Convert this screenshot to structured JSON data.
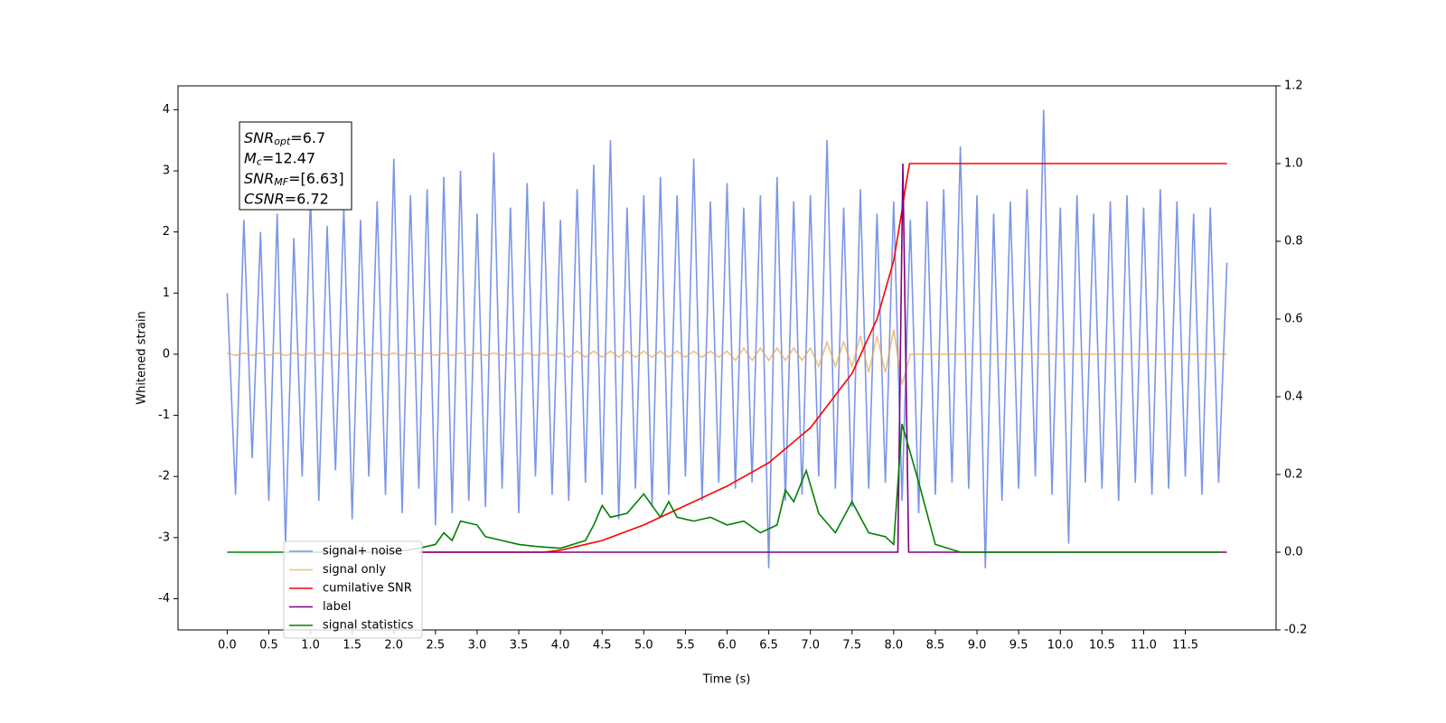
{
  "chart_data": {
    "type": "line",
    "xlabel": "Time (s)",
    "ylabel": "Whitened strain",
    "xlim": [
      -0.59,
      12.59
    ],
    "ylim": [
      -4.51,
      4.39
    ],
    "y2lim": [
      -0.2,
      1.2
    ],
    "xticks": [
      {
        "value": 0,
        "label": "0.0"
      },
      0.5,
      {
        "value": 1,
        "label": "1.0"
      },
      1.5,
      {
        "value": 2,
        "label": "2.0"
      },
      2.5,
      {
        "value": 3,
        "label": "3.0"
      },
      3.5,
      {
        "value": 4,
        "label": "4.0"
      },
      4.5,
      {
        "value": 5,
        "label": "5.0"
      },
      5.5,
      {
        "value": 6,
        "label": "6.0"
      },
      6.5,
      {
        "value": 7,
        "label": "7.0"
      },
      7.5,
      {
        "value": 8,
        "label": "8.0"
      },
      8.5,
      {
        "value": 9,
        "label": "9.0"
      },
      9.5,
      {
        "value": 10,
        "label": "10.0"
      },
      10.5,
      {
        "value": 11,
        "label": "11.0"
      },
      11.5
    ],
    "yticks": [
      -4,
      -3,
      -2,
      -1,
      0,
      1,
      2,
      3,
      4
    ],
    "y2ticks": [
      -0.2,
      {
        "value": 0,
        "label": "0.0"
      },
      0.2,
      0.4,
      0.6,
      0.8,
      {
        "value": 1,
        "label": "1.0"
      },
      1.2
    ],
    "legend_loc": "lower left",
    "annotations": [
      {
        "base": "SNR",
        "sub": "opt",
        "text": "=6.7"
      },
      {
        "base": "M",
        "sub": "c",
        "text": "=12.47"
      },
      {
        "base": "SNR",
        "sub": "MF",
        "text": "=[6.63]"
      },
      {
        "base": "CSNR",
        "text": "=6.72"
      }
    ],
    "series": [
      {
        "name": "signal+ noise",
        "color": "#7b96e6",
        "x": [
          0.0,
          0.1,
          0.2,
          0.3,
          0.4,
          0.5,
          0.6,
          0.7,
          0.8,
          0.9,
          1.0,
          1.1,
          1.2,
          1.3,
          1.4,
          1.5,
          1.6,
          1.7,
          1.8,
          1.9,
          2.0,
          2.1,
          2.2,
          2.3,
          2.4,
          2.5,
          2.6,
          2.7,
          2.8,
          2.9,
          3.0,
          3.1,
          3.2,
          3.3,
          3.4,
          3.5,
          3.6,
          3.7,
          3.8,
          3.9,
          4.0,
          4.1,
          4.2,
          4.3,
          4.4,
          4.5,
          4.6,
          4.7,
          4.8,
          4.9,
          5.0,
          5.1,
          5.2,
          5.3,
          5.4,
          5.5,
          5.6,
          5.7,
          5.8,
          5.9,
          6.0,
          6.1,
          6.2,
          6.3,
          6.4,
          6.5,
          6.6,
          6.7,
          6.8,
          6.9,
          7.0,
          7.1,
          7.2,
          7.3,
          7.4,
          7.5,
          7.6,
          7.7,
          7.8,
          7.9,
          8.0,
          8.1,
          8.2,
          8.3,
          8.4,
          8.5,
          8.6,
          8.7,
          8.8,
          8.9,
          9.0,
          9.1,
          9.2,
          9.3,
          9.4,
          9.5,
          9.6,
          9.7,
          9.8,
          9.9,
          10.0,
          10.1,
          10.2,
          10.3,
          10.4,
          10.5,
          10.6,
          10.7,
          10.8,
          10.9,
          11.0,
          11.1,
          11.2,
          11.3,
          11.4,
          11.5,
          11.6,
          11.7,
          11.8,
          11.9,
          12.0
        ],
        "values": [
          1.0,
          -2.3,
          2.2,
          -1.7,
          2.0,
          -2.4,
          2.3,
          -3.1,
          1.9,
          -2.0,
          2.6,
          -2.4,
          2.1,
          -1.9,
          2.4,
          -2.7,
          2.2,
          -2.0,
          2.5,
          -2.3,
          3.2,
          -2.6,
          2.6,
          -2.2,
          2.7,
          -2.8,
          2.9,
          -2.6,
          3.0,
          -2.4,
          2.3,
          -2.5,
          3.3,
          -2.2,
          2.4,
          -2.6,
          2.8,
          -2.0,
          2.5,
          -2.3,
          2.2,
          -2.4,
          2.7,
          -2.1,
          3.1,
          -2.3,
          3.5,
          -2.7,
          2.4,
          -2.2,
          2.6,
          -2.5,
          2.9,
          -2.3,
          2.6,
          -2.0,
          3.2,
          -2.4,
          2.5,
          -2.1,
          2.8,
          -2.2,
          2.4,
          -2.1,
          2.6,
          -3.5,
          2.9,
          -2.4,
          2.5,
          -2.3,
          2.6,
          -2.0,
          3.5,
          -2.2,
          2.4,
          -2.5,
          2.7,
          -2.2,
          2.3,
          -2.1,
          2.5,
          -2.4,
          2.2,
          -2.6,
          2.5,
          -2.3,
          2.7,
          -2.1,
          3.4,
          -2.2,
          2.6,
          -3.5,
          2.3,
          -2.4,
          2.5,
          -2.2,
          2.7,
          -2.0,
          4.0,
          -2.3,
          2.4,
          -3.1,
          2.6,
          -2.1,
          2.3,
          -2.2,
          2.5,
          -2.4,
          2.6,
          -2.1,
          2.4,
          -2.3,
          2.7,
          -2.2,
          2.5,
          -2.0,
          2.3,
          -2.3,
          2.4,
          -2.1,
          1.5
        ]
      },
      {
        "name": "signal only",
        "color": "#e6a550",
        "x": [
          0.0,
          0.1,
          0.2,
          0.3,
          0.4,
          0.5,
          0.6,
          0.7,
          0.8,
          0.9,
          1.0,
          1.1,
          1.2,
          1.3,
          1.4,
          1.5,
          1.6,
          1.7,
          1.8,
          1.9,
          2.0,
          2.1,
          2.2,
          2.3,
          2.4,
          2.5,
          2.6,
          2.7,
          2.8,
          2.9,
          3.0,
          3.1,
          3.2,
          3.3,
          3.4,
          3.5,
          3.6,
          3.7,
          3.8,
          3.9,
          4.0,
          4.1,
          4.2,
          4.3,
          4.4,
          4.5,
          4.6,
          4.7,
          4.8,
          4.9,
          5.0,
          5.1,
          5.2,
          5.3,
          5.4,
          5.5,
          5.6,
          5.7,
          5.8,
          5.9,
          6.0,
          6.1,
          6.2,
          6.3,
          6.4,
          6.5,
          6.6,
          6.7,
          6.8,
          6.9,
          7.0,
          7.1,
          7.2,
          7.3,
          7.4,
          7.5,
          7.6,
          7.7,
          7.8,
          7.9,
          8.0,
          8.1,
          8.2,
          8.3,
          8.4,
          8.5,
          8.6,
          8.7,
          8.8,
          8.9,
          9.0,
          9.1,
          9.2,
          9.3,
          9.4,
          9.5,
          9.6,
          9.7,
          9.8,
          9.9,
          10.0,
          10.1,
          10.2,
          10.3,
          10.4,
          10.5,
          10.6,
          10.7,
          10.8,
          10.9,
          11.0,
          11.1,
          11.2,
          11.3,
          11.4,
          11.5,
          11.6,
          11.7,
          11.8,
          11.9,
          12.0
        ],
        "values": [
          0.02,
          -0.02,
          0.02,
          -0.02,
          0.02,
          -0.02,
          0.02,
          -0.02,
          0.02,
          -0.02,
          0.02,
          -0.02,
          0.02,
          -0.02,
          0.02,
          -0.02,
          0.02,
          -0.02,
          0.02,
          -0.02,
          0.02,
          -0.02,
          0.02,
          -0.02,
          0.02,
          -0.02,
          0.02,
          -0.02,
          0.02,
          -0.02,
          0.02,
          -0.02,
          0.02,
          -0.02,
          0.02,
          -0.02,
          0.02,
          -0.02,
          0.02,
          -0.02,
          0.02,
          -0.05,
          0.05,
          -0.05,
          0.05,
          -0.05,
          0.05,
          -0.05,
          0.05,
          -0.05,
          0.05,
          -0.05,
          0.05,
          -0.05,
          0.05,
          -0.05,
          0.05,
          -0.05,
          0.05,
          -0.05,
          0.05,
          -0.1,
          0.1,
          -0.1,
          0.1,
          -0.1,
          0.1,
          -0.1,
          0.1,
          -0.1,
          0.1,
          -0.2,
          0.2,
          -0.2,
          0.2,
          -0.2,
          0.3,
          -0.3,
          0.3,
          -0.3,
          0.4,
          -0.5,
          0,
          0,
          0,
          0,
          0,
          0,
          0,
          0,
          0,
          0,
          0,
          0,
          0,
          0,
          0,
          0,
          0,
          0,
          0,
          0,
          0,
          0,
          0,
          0,
          0,
          0,
          0,
          0,
          0,
          0,
          0,
          0,
          0,
          0,
          0,
          0,
          0,
          0,
          0
        ]
      },
      {
        "name": "cumilative SNR",
        "color": "#ff0000",
        "axis": "y2",
        "x": [
          2.3,
          3.5,
          3.8,
          4.0,
          4.5,
          5.0,
          5.5,
          6.0,
          6.5,
          7.0,
          7.5,
          7.8,
          8.0,
          8.1,
          8.15,
          8.19,
          12.0
        ],
        "values": [
          0.0,
          0.0,
          0.0,
          0.005,
          0.03,
          0.07,
          0.12,
          0.17,
          0.23,
          0.32,
          0.46,
          0.6,
          0.75,
          0.88,
          0.95,
          1.0,
          1.0
        ]
      },
      {
        "name": "label",
        "color": "#800080",
        "axis": "y2",
        "x": [
          2.3,
          8.05,
          8.11,
          8.18,
          12.0
        ],
        "values": [
          0.0,
          0.0,
          1.0,
          0.0,
          0.0
        ]
      },
      {
        "name": "signal statistics",
        "color": "#008000",
        "axis": "y2",
        "x": [
          0.0,
          2.0,
          2.3,
          2.5,
          2.6,
          2.7,
          2.8,
          3.0,
          3.1,
          3.3,
          3.5,
          3.7,
          4.0,
          4.3,
          4.4,
          4.5,
          4.6,
          4.8,
          5.0,
          5.2,
          5.3,
          5.4,
          5.6,
          5.8,
          6.0,
          6.2,
          6.4,
          6.6,
          6.7,
          6.8,
          6.95,
          7.1,
          7.3,
          7.5,
          7.7,
          7.9,
          8.0,
          8.1,
          8.3,
          8.5,
          8.8,
          11.92
        ],
        "values": [
          0.0,
          0.0,
          0.01,
          0.02,
          0.05,
          0.03,
          0.08,
          0.07,
          0.04,
          0.03,
          0.02,
          0.015,
          0.01,
          0.03,
          0.07,
          0.12,
          0.09,
          0.1,
          0.15,
          0.09,
          0.13,
          0.09,
          0.08,
          0.09,
          0.07,
          0.08,
          0.05,
          0.07,
          0.16,
          0.13,
          0.21,
          0.1,
          0.05,
          0.13,
          0.05,
          0.04,
          0.02,
          0.33,
          0.18,
          0.02,
          0.0,
          0.0
        ]
      }
    ]
  }
}
